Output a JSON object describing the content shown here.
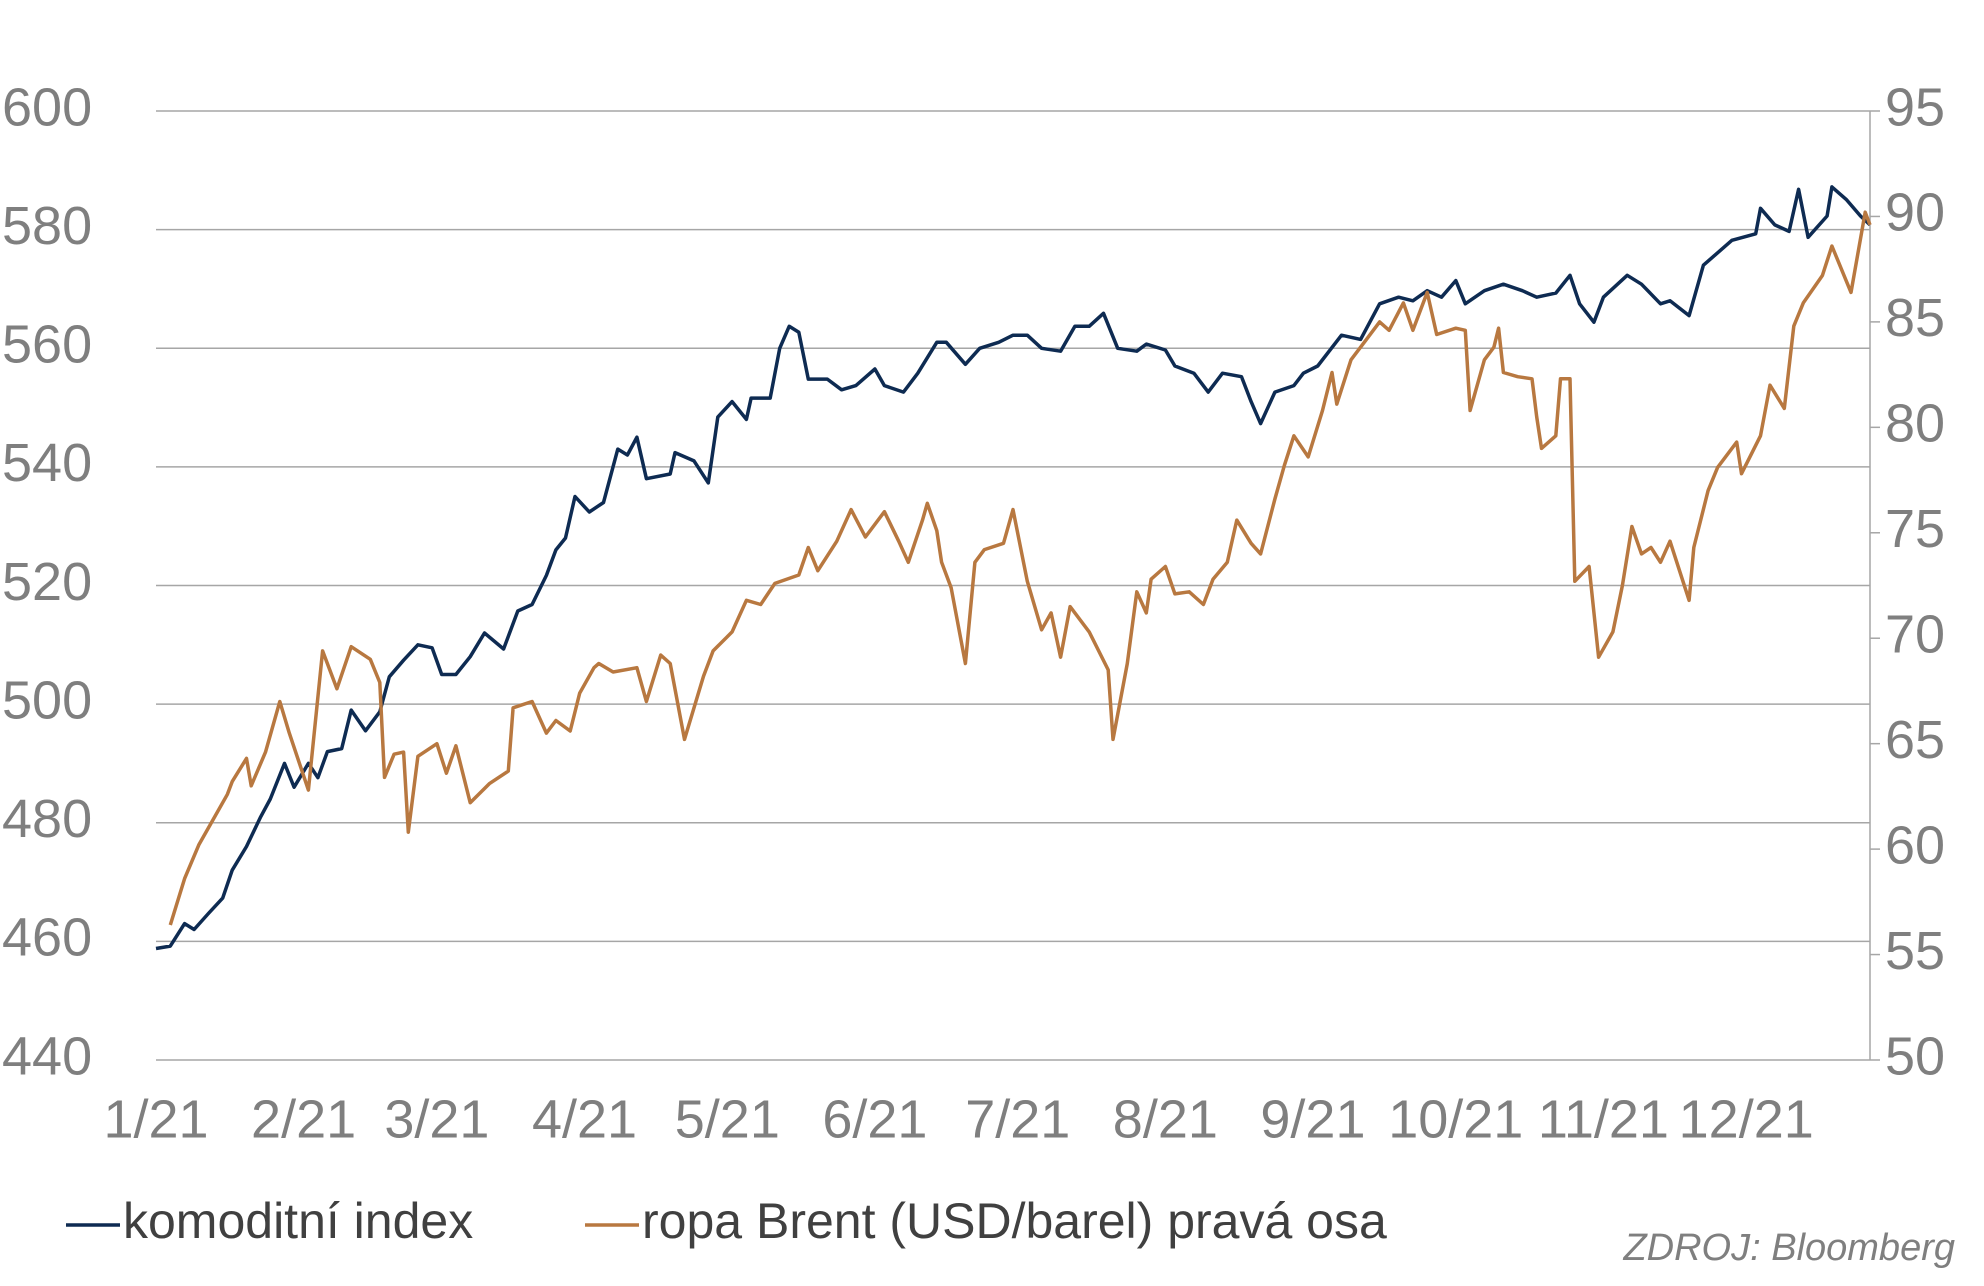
{
  "chart_data": {
    "type": "line",
    "source": "ZDROJ: Bloomberg",
    "xlim": [
      0,
      360
    ],
    "xticks": [
      {
        "value": 0,
        "label": "1/21"
      },
      {
        "value": 31,
        "label": "2/21"
      },
      {
        "value": 59,
        "label": "3/21"
      },
      {
        "value": 90,
        "label": "4/21"
      },
      {
        "value": 120,
        "label": "5/21"
      },
      {
        "value": 151,
        "label": "6/21"
      },
      {
        "value": 181,
        "label": "7/21"
      },
      {
        "value": 212,
        "label": "8/21"
      },
      {
        "value": 243,
        "label": "9/21"
      },
      {
        "value": 273,
        "label": "10/21"
      },
      {
        "value": 304,
        "label": "11/21"
      },
      {
        "value": 334,
        "label": "12/21"
      }
    ],
    "ylim": [
      440,
      600
    ],
    "yticks": [
      440,
      460,
      480,
      500,
      520,
      540,
      560,
      580,
      600
    ],
    "y2lim": [
      50,
      95
    ],
    "y2ticks": [
      50,
      55,
      60,
      65,
      70,
      75,
      80,
      85,
      90,
      95
    ],
    "grid": true,
    "series": [
      {
        "name": "komoditní index",
        "color": "#0e2b52",
        "axis": "y",
        "x": [
          0,
          3,
          6,
          8,
          11,
          14,
          16,
          19,
          22,
          24,
          27,
          29,
          32,
          34,
          36,
          39,
          41,
          44,
          47,
          49,
          52,
          55,
          58,
          60,
          63,
          66,
          69,
          73,
          76,
          79,
          82,
          84,
          86,
          88,
          91,
          94,
          97,
          99,
          101,
          103,
          108,
          109,
          113,
          116,
          118,
          121,
          124,
          125,
          129,
          131,
          133,
          135,
          137,
          141,
          144,
          147,
          151,
          153,
          157,
          160,
          164,
          166,
          170,
          173,
          177,
          180,
          183,
          186,
          190,
          193,
          196,
          199,
          202,
          206,
          208,
          212,
          214,
          218,
          221,
          224,
          228,
          230,
          232,
          235,
          239,
          241,
          244,
          249,
          253,
          257,
          261,
          264,
          267,
          270,
          273,
          275,
          279,
          283,
          287,
          290,
          294,
          297,
          299,
          302,
          304,
          309,
          312,
          316,
          318,
          322,
          325,
          328,
          331,
          336,
          337,
          340,
          343,
          345,
          347,
          351,
          352,
          355,
          358,
          360
        ],
        "values": [
          458.8,
          459.2,
          463,
          462,
          464.7,
          467.3,
          472,
          476,
          481,
          484,
          490,
          486,
          490,
          487.6,
          492,
          492.5,
          499,
          495.5,
          498.7,
          504.6,
          507.4,
          510,
          509.5,
          505,
          505,
          508,
          512,
          509.3,
          515.7,
          516.8,
          521.7,
          526,
          528,
          535,
          532.4,
          534,
          543,
          542,
          545,
          538,
          538.8,
          542.4,
          541,
          537.3,
          548.4,
          551,
          548,
          551.6,
          551.6,
          560,
          563.7,
          562.7,
          554.8,
          554.8,
          553,
          553.7,
          556.5,
          553.7,
          552.6,
          555.8,
          561,
          561,
          557.3,
          560,
          561,
          562.2,
          562.2,
          560,
          559.5,
          563.7,
          563.7,
          565.9,
          560,
          559.5,
          560.7,
          559.7,
          557,
          555.8,
          552.6,
          555.8,
          555.2,
          551,
          547.3,
          552.6,
          553.7,
          555.8,
          557,
          562.2,
          561.5,
          567.5,
          568.6,
          568,
          569.7,
          568.6,
          571.4,
          567.5,
          569.7,
          570.8,
          569.7,
          568.6,
          569.3,
          572.3,
          567.5,
          564.4,
          568.6,
          572.3,
          570.8,
          567.5,
          568,
          565.5,
          574,
          576.1,
          578.2,
          579.3,
          583.6,
          580.8,
          579.7,
          586.8,
          578.7,
          582.3,
          587.2,
          585.1,
          582.3,
          580.8
        ]
      },
      {
        "name": "ropa Brent (USD/barel) pravá osa",
        "color": "#b87840",
        "axis": "y2",
        "x": [
          3,
          6,
          9,
          12,
          15,
          16,
          19,
          20,
          23,
          26,
          28,
          32,
          35,
          38,
          41,
          45,
          47,
          48,
          50,
          52,
          53,
          55,
          59,
          61,
          63,
          66,
          70,
          74,
          75,
          79,
          82,
          84,
          87,
          89,
          92,
          93,
          96,
          101,
          103,
          106,
          108,
          111,
          115,
          117,
          121,
          124,
          127,
          130,
          135,
          137,
          139,
          143,
          146,
          149,
          153,
          156,
          158,
          161,
          162,
          164,
          165,
          167,
          170,
          172,
          174,
          178,
          180,
          183,
          186,
          188,
          190,
          192,
          196,
          200,
          201,
          204,
          206,
          208,
          209,
          212,
          214,
          217,
          220,
          222,
          225,
          227,
          230,
          232,
          235,
          237,
          239,
          242,
          245,
          247,
          248,
          251,
          254,
          257,
          259,
          262,
          264,
          267,
          269,
          273,
          275,
          276,
          279,
          281,
          282,
          283,
          286,
          289,
          290,
          291,
          294,
          295,
          297,
          298,
          301,
          303,
          306,
          308,
          310,
          312,
          314,
          316,
          318,
          322,
          323,
          326,
          328,
          332,
          333,
          337,
          339,
          342,
          344,
          346,
          350,
          352,
          356,
          359,
          360
        ],
        "values": [
          56.4,
          58.6,
          60.2,
          61.4,
          62.6,
          63.2,
          64.3,
          63,
          64.6,
          67,
          65.5,
          62.8,
          69.4,
          67.6,
          69.6,
          69,
          67.9,
          63.4,
          64.5,
          64.6,
          60.8,
          64.4,
          65,
          63.6,
          64.9,
          62.2,
          63.1,
          63.7,
          66.7,
          67,
          65.5,
          66.1,
          65.6,
          67.4,
          68.6,
          68.8,
          68.4,
          68.6,
          67,
          69.2,
          68.8,
          65.2,
          68.2,
          69.4,
          70.3,
          71.8,
          71.6,
          72.6,
          73,
          74.3,
          73.2,
          74.6,
          76.1,
          74.8,
          76,
          74.6,
          73.6,
          75.6,
          76.4,
          75.1,
          73.6,
          72.4,
          68.8,
          73.6,
          74.2,
          74.5,
          76.1,
          72.7,
          70.4,
          71.2,
          69.1,
          71.5,
          70.3,
          68.5,
          65.2,
          68.8,
          72.2,
          71.2,
          72.8,
          73.4,
          72.1,
          72.2,
          71.6,
          72.8,
          73.6,
          75.6,
          74.5,
          74,
          76.6,
          78.2,
          79.6,
          78.6,
          80.8,
          82.6,
          81.1,
          83.2,
          84.1,
          85,
          84.6,
          85.9,
          84.6,
          86.4,
          84.4,
          84.7,
          84.6,
          80.8,
          83.2,
          83.8,
          84.7,
          82.6,
          82.4,
          82.3,
          80.5,
          79,
          79.6,
          82.3,
          82.3,
          72.7,
          73.4,
          69.1,
          70.3,
          72.5,
          75.3,
          74,
          74.3,
          73.6,
          74.6,
          71.8,
          74.3,
          77,
          78.1,
          79.3,
          77.8,
          79.6,
          82,
          80.9,
          84.8,
          85.9,
          87.2,
          88.6,
          86.4,
          90.2,
          89.6
        ]
      }
    ]
  }
}
